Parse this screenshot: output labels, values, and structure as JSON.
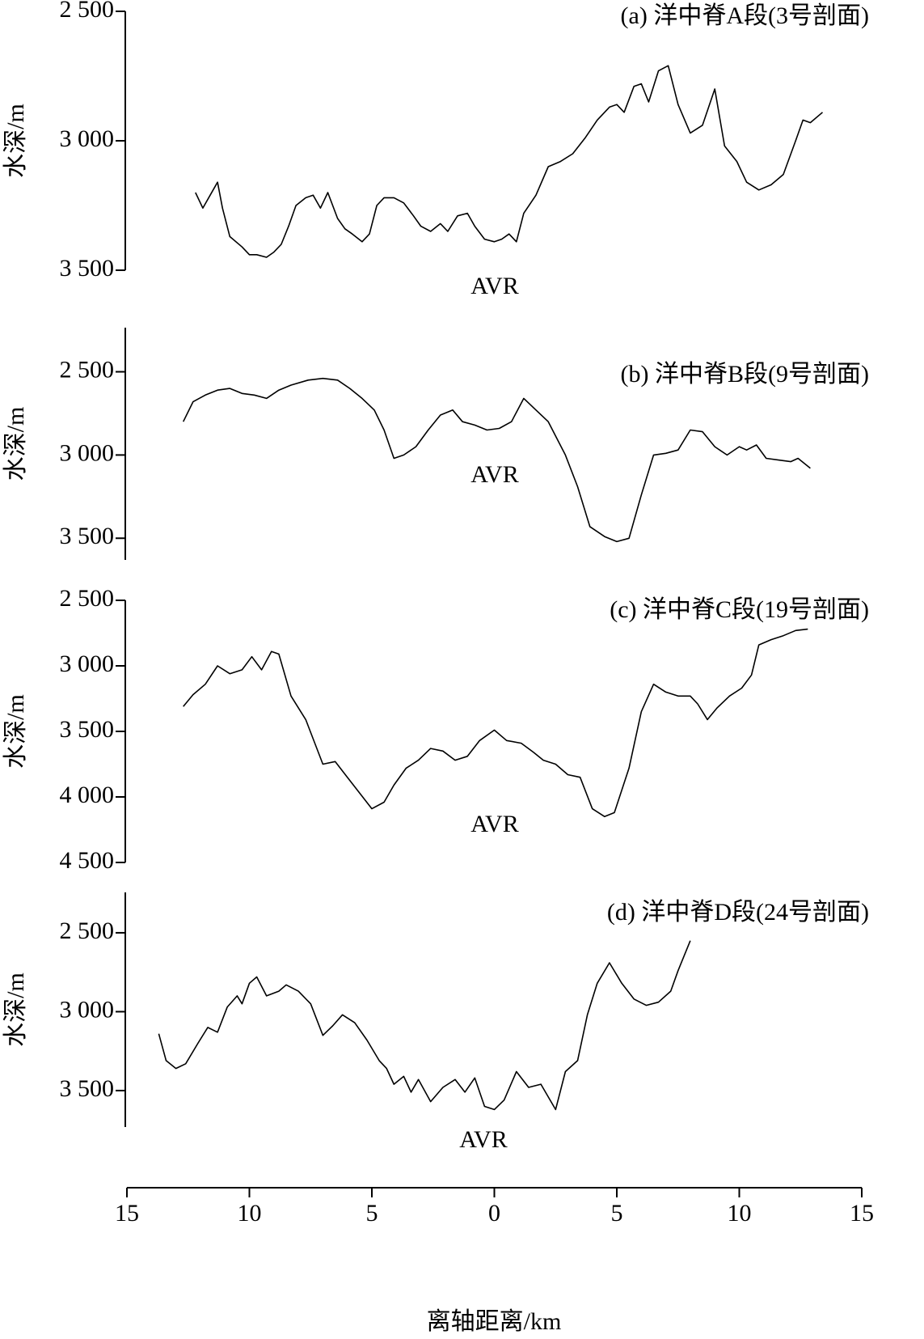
{
  "chart_data": [
    {
      "type": "line",
      "title": "(a) 洋中脊A段(3号剖面)",
      "annotation": "AVR",
      "y_label": "水深/m",
      "color": "#000000",
      "y_inverted": true,
      "xlim": [
        -15,
        15
      ],
      "ylim": [
        2500,
        3500
      ],
      "yticks": [
        {
          "value": 2500,
          "label": "2 500"
        },
        {
          "value": 3000,
          "label": "3 000"
        },
        {
          "value": 3500,
          "label": "3 500"
        }
      ],
      "x": [
        -12.2,
        -11.9,
        -11.6,
        -11.3,
        -11.1,
        -10.8,
        -10.3,
        -10.0,
        -9.7,
        -9.3,
        -9.0,
        -8.7,
        -8.4,
        -8.1,
        -7.7,
        -7.4,
        -7.1,
        -6.8,
        -6.4,
        -6.1,
        -5.8,
        -5.4,
        -5.1,
        -4.8,
        -4.5,
        -4.1,
        -3.7,
        -3.3,
        -3.0,
        -2.6,
        -2.2,
        -1.9,
        -1.5,
        -1.1,
        -0.8,
        -0.4,
        0.0,
        0.3,
        0.6,
        0.9,
        1.2,
        1.7,
        2.2,
        2.7,
        3.2,
        3.7,
        4.2,
        4.7,
        5.0,
        5.3,
        5.7,
        6.0,
        6.3,
        6.7,
        7.1,
        7.5,
        8.0,
        8.5,
        9.0,
        9.4,
        9.9,
        10.3,
        10.8,
        11.3,
        11.8,
        12.3,
        12.6,
        12.9,
        13.4
      ],
      "values": [
        3200,
        3260,
        3210,
        3160,
        3260,
        3370,
        3410,
        3440,
        3440,
        3450,
        3430,
        3400,
        3330,
        3250,
        3220,
        3210,
        3260,
        3200,
        3300,
        3340,
        3360,
        3390,
        3360,
        3250,
        3220,
        3220,
        3240,
        3290,
        3330,
        3350,
        3320,
        3350,
        3290,
        3280,
        3330,
        3380,
        3390,
        3380,
        3360,
        3390,
        3280,
        3210,
        3100,
        3080,
        3050,
        2990,
        2920,
        2870,
        2860,
        2890,
        2790,
        2780,
        2850,
        2730,
        2710,
        2860,
        2970,
        2940,
        2800,
        3020,
        3080,
        3160,
        3190,
        3170,
        3130,
        3000,
        2920,
        2930,
        2890
      ]
    },
    {
      "type": "line",
      "title": "(b) 洋中脊B段(9号剖面)",
      "annotation": "AVR",
      "y_label": "水深/m",
      "color": "#000000",
      "y_inverted": true,
      "xlim": [
        -15,
        15
      ],
      "ylim": [
        2235,
        3630
      ],
      "yticks": [
        {
          "value": 2500,
          "label": "2 500"
        },
        {
          "value": 3000,
          "label": "3 000"
        },
        {
          "value": 3500,
          "label": "3 500"
        }
      ],
      "x": [
        -12.7,
        -12.3,
        -11.8,
        -11.3,
        -10.8,
        -10.3,
        -9.8,
        -9.3,
        -8.8,
        -8.3,
        -7.6,
        -7.0,
        -6.4,
        -5.9,
        -5.4,
        -4.9,
        -4.5,
        -4.1,
        -3.7,
        -3.2,
        -2.7,
        -2.2,
        -1.7,
        -1.3,
        -0.8,
        -0.3,
        0.2,
        0.7,
        1.2,
        1.7,
        2.2,
        2.9,
        3.4,
        3.9,
        4.5,
        5.0,
        5.5,
        6.0,
        6.5,
        7.0,
        7.5,
        8.0,
        8.5,
        9.0,
        9.5,
        10.0,
        10.3,
        10.7,
        11.1,
        11.6,
        12.1,
        12.4,
        12.9
      ],
      "values": [
        2800,
        2680,
        2640,
        2610,
        2600,
        2630,
        2640,
        2660,
        2610,
        2580,
        2550,
        2540,
        2550,
        2600,
        2660,
        2730,
        2850,
        3020,
        3000,
        2950,
        2850,
        2760,
        2730,
        2800,
        2820,
        2850,
        2840,
        2800,
        2660,
        2730,
        2800,
        3000,
        3190,
        3430,
        3490,
        3520,
        3500,
        3240,
        3000,
        2990,
        2970,
        2850,
        2860,
        2950,
        3000,
        2950,
        2970,
        2940,
        3020,
        3030,
        3040,
        3020,
        3080
      ]
    },
    {
      "type": "line",
      "title": "(c) 洋中脊C段(19号剖面)",
      "annotation": "AVR",
      "y_label": "水深/m",
      "color": "#000000",
      "y_inverted": true,
      "xlim": [
        -15,
        15
      ],
      "ylim": [
        2500,
        4500
      ],
      "yticks": [
        {
          "value": 2500,
          "label": "2 500"
        },
        {
          "value": 3000,
          "label": "3 000"
        },
        {
          "value": 3500,
          "label": "3 500"
        },
        {
          "value": 4000,
          "label": "4 000"
        },
        {
          "value": 4500,
          "label": "4 500"
        }
      ],
      "x": [
        -12.7,
        -12.3,
        -11.8,
        -11.3,
        -10.8,
        -10.3,
        -9.9,
        -9.5,
        -9.1,
        -8.8,
        -8.3,
        -7.7,
        -7.0,
        -6.5,
        -6.0,
        -5.5,
        -5.0,
        -4.5,
        -4.1,
        -3.6,
        -3.1,
        -2.6,
        -2.1,
        -1.6,
        -1.1,
        -0.6,
        0.0,
        0.5,
        1.1,
        1.6,
        2.0,
        2.5,
        3.0,
        3.5,
        4.0,
        4.5,
        4.9,
        5.5,
        6.0,
        6.5,
        7.0,
        7.5,
        8.0,
        8.3,
        8.7,
        9.1,
        9.6,
        10.1,
        10.5,
        10.8,
        11.3,
        11.8,
        12.3,
        12.8
      ],
      "values": [
        3310,
        3220,
        3140,
        3000,
        3060,
        3030,
        2930,
        3030,
        2890,
        2910,
        3230,
        3410,
        3750,
        3730,
        3850,
        3970,
        4090,
        4040,
        3910,
        3780,
        3720,
        3630,
        3650,
        3720,
        3690,
        3570,
        3490,
        3570,
        3590,
        3660,
        3720,
        3750,
        3830,
        3850,
        4090,
        4150,
        4120,
        3780,
        3350,
        3140,
        3200,
        3230,
        3230,
        3290,
        3410,
        3320,
        3230,
        3170,
        3070,
        2840,
        2800,
        2770,
        2730,
        2720
      ]
    },
    {
      "type": "line",
      "title": "(d) 洋中脊D段(24号剖面)",
      "annotation": "AVR",
      "y_label": "水深/m",
      "color": "#000000",
      "y_inverted": true,
      "xlim": [
        -15,
        15
      ],
      "ylim": [
        2244,
        3731
      ],
      "yticks": [
        {
          "value": 2500,
          "label": "2 500"
        },
        {
          "value": 3000,
          "label": "3 000"
        },
        {
          "value": 3500,
          "label": "3 500"
        }
      ],
      "x_label": "离轴距离/km",
      "xticks": [
        {
          "value": -15,
          "label": "15"
        },
        {
          "value": -10,
          "label": "10"
        },
        {
          "value": -5,
          "label": "5"
        },
        0,
        5,
        10,
        15
      ],
      "x": [
        -13.7,
        -13.4,
        -13.0,
        -12.6,
        -12.1,
        -11.7,
        -11.3,
        -10.9,
        -10.5,
        -10.3,
        -10.0,
        -9.7,
        -9.3,
        -8.8,
        -8.5,
        -8.0,
        -7.5,
        -7.0,
        -6.6,
        -6.2,
        -5.7,
        -5.2,
        -4.7,
        -4.4,
        -4.1,
        -3.7,
        -3.4,
        -3.1,
        -2.6,
        -2.1,
        -1.6,
        -1.2,
        -0.8,
        -0.4,
        0.0,
        0.4,
        0.9,
        1.4,
        1.9,
        2.5,
        2.9,
        3.4,
        3.8,
        4.2,
        4.7,
        5.2,
        5.7,
        6.2,
        6.7,
        7.2,
        7.5,
        8.0
      ],
      "values": [
        3140,
        3310,
        3360,
        3330,
        3200,
        3100,
        3130,
        2970,
        2900,
        2950,
        2820,
        2780,
        2900,
        2870,
        2830,
        2870,
        2950,
        3150,
        3090,
        3020,
        3070,
        3180,
        3310,
        3360,
        3460,
        3410,
        3510,
        3430,
        3570,
        3480,
        3430,
        3510,
        3420,
        3600,
        3620,
        3560,
        3380,
        3480,
        3460,
        3620,
        3380,
        3310,
        3020,
        2820,
        2690,
        2820,
        2920,
        2960,
        2940,
        2870,
        2740,
        2550
      ]
    }
  ]
}
